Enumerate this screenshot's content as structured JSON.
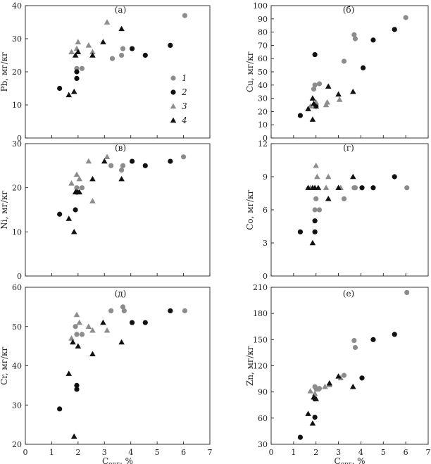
{
  "figure": {
    "legend": [
      {
        "id": "1",
        "label": "1",
        "marker": "circle",
        "color": "#8c8c8c"
      },
      {
        "id": "2",
        "label": "2",
        "marker": "circle",
        "color": "#111111"
      },
      {
        "id": "3",
        "label": "3",
        "marker": "triangle",
        "color": "#8c8c8c"
      },
      {
        "id": "4",
        "label": "4",
        "marker": "triangle",
        "color": "#111111"
      }
    ]
  },
  "chart_data": [
    {
      "type": "scatter",
      "panel": "(а)",
      "xlabel_main": "C",
      "xlabel_sub": "орг",
      "xlabel_tail": ", %",
      "ylabel": "Pb, мг/кг",
      "xlim": [
        0,
        7
      ],
      "ylim": [
        0,
        40
      ],
      "xticks": [
        0,
        1,
        2,
        3,
        4,
        5,
        6,
        7
      ],
      "yticks": [
        0,
        10,
        20,
        30,
        40
      ],
      "series": [
        {
          "legend": "1",
          "points": [
            [
              1.95,
              21
            ],
            [
              2.15,
              21
            ],
            [
              3.3,
              24
            ],
            [
              3.65,
              25
            ],
            [
              3.7,
              27
            ],
            [
              6.05,
              37
            ]
          ]
        },
        {
          "legend": "2",
          "points": [
            [
              1.3,
              15
            ],
            [
              1.95,
              18
            ],
            [
              1.95,
              20
            ],
            [
              4.05,
              27
            ],
            [
              4.55,
              25
            ],
            [
              5.5,
              28
            ]
          ]
        },
        {
          "legend": "3",
          "points": [
            [
              1.75,
              26
            ],
            [
              1.95,
              27
            ],
            [
              2.0,
              29
            ],
            [
              2.4,
              28
            ],
            [
              2.55,
              26
            ],
            [
              3.1,
              35
            ]
          ]
        },
        {
          "legend": "4",
          "points": [
            [
              1.65,
              13
            ],
            [
              1.85,
              14
            ],
            [
              1.9,
              25
            ],
            [
              2.0,
              26
            ],
            [
              2.55,
              25
            ],
            [
              2.95,
              29
            ],
            [
              3.65,
              33
            ]
          ]
        }
      ]
    },
    {
      "type": "scatter",
      "panel": "(б)",
      "xlabel_main": "C",
      "xlabel_sub": "орг",
      "xlabel_tail": ", %",
      "ylabel": "Cu, мг/кг",
      "xlim": [
        0,
        7
      ],
      "ylim": [
        0,
        100
      ],
      "xticks": [
        0,
        1,
        2,
        3,
        4,
        5,
        6,
        7
      ],
      "yticks": [
        0,
        10,
        20,
        30,
        40,
        50,
        60,
        70,
        80,
        90,
        100
      ],
      "series": [
        {
          "legend": "1",
          "points": [
            [
              1.9,
              37
            ],
            [
              1.95,
              40
            ],
            [
              2.15,
              41
            ],
            [
              3.25,
              58
            ],
            [
              3.7,
              78
            ],
            [
              3.75,
              75
            ],
            [
              6.0,
              91
            ]
          ]
        },
        {
          "legend": "2",
          "points": [
            [
              1.3,
              17
            ],
            [
              1.95,
              63
            ],
            [
              2.0,
              24
            ],
            [
              4.1,
              53
            ],
            [
              4.55,
              74
            ],
            [
              5.5,
              82
            ]
          ]
        },
        {
          "legend": "3",
          "points": [
            [
              1.75,
              24
            ],
            [
              2.0,
              27
            ],
            [
              2.45,
              25
            ],
            [
              2.5,
              27
            ],
            [
              3.05,
              29
            ]
          ]
        },
        {
          "legend": "4",
          "points": [
            [
              1.65,
              22
            ],
            [
              1.85,
              14
            ],
            [
              1.85,
              30
            ],
            [
              1.9,
              26
            ],
            [
              2.0,
              24
            ],
            [
              2.55,
              39
            ],
            [
              3.0,
              33
            ],
            [
              3.65,
              35
            ]
          ]
        }
      ]
    },
    {
      "type": "scatter",
      "panel": "(в)",
      "xlabel_main": "C",
      "xlabel_sub": "орг",
      "xlabel_tail": ", %",
      "ylabel": "Ni, мг/кг",
      "xlim": [
        0,
        7
      ],
      "ylim": [
        0,
        30
      ],
      "xticks": [
        0,
        1,
        2,
        3,
        4,
        5,
        6,
        7
      ],
      "yticks": [
        0,
        10,
        20,
        30
      ],
      "series": [
        {
          "legend": "1",
          "points": [
            [
              1.95,
              20
            ],
            [
              2.15,
              20
            ],
            [
              3.25,
              25
            ],
            [
              3.65,
              24
            ],
            [
              3.7,
              25
            ],
            [
              6.0,
              27
            ]
          ]
        },
        {
          "legend": "2",
          "points": [
            [
              1.3,
              14
            ],
            [
              1.9,
              15
            ],
            [
              1.95,
              19
            ],
            [
              4.05,
              26
            ],
            [
              4.55,
              25
            ],
            [
              5.5,
              26
            ]
          ]
        },
        {
          "legend": "3",
          "points": [
            [
              1.75,
              21
            ],
            [
              1.95,
              23
            ],
            [
              2.05,
              22
            ],
            [
              2.4,
              26
            ],
            [
              2.55,
              17
            ],
            [
              3.1,
              27
            ]
          ]
        },
        {
          "legend": "4",
          "points": [
            [
              1.65,
              13
            ],
            [
              1.85,
              10
            ],
            [
              1.9,
              19
            ],
            [
              2.05,
              19
            ],
            [
              2.55,
              22
            ],
            [
              3.0,
              26
            ],
            [
              3.65,
              22
            ]
          ]
        }
      ]
    },
    {
      "type": "scatter",
      "panel": "(г)",
      "xlabel_main": "C",
      "xlabel_sub": "орг",
      "xlabel_tail": ", %",
      "ylabel": "Co, мг/кг",
      "xlim": [
        0,
        7
      ],
      "ylim": [
        0,
        12
      ],
      "xticks": [
        0,
        1,
        2,
        3,
        4,
        5,
        6,
        7
      ],
      "yticks": [
        0,
        3,
        6,
        9,
        12
      ],
      "series": [
        {
          "legend": "1",
          "points": [
            [
              1.95,
              6
            ],
            [
              2.0,
              7
            ],
            [
              2.15,
              6
            ],
            [
              3.25,
              7
            ],
            [
              3.7,
              8
            ],
            [
              3.75,
              8
            ],
            [
              6.05,
              8
            ]
          ]
        },
        {
          "legend": "2",
          "points": [
            [
              1.3,
              4
            ],
            [
              1.95,
              4
            ],
            [
              1.95,
              5
            ],
            [
              4.05,
              8
            ],
            [
              4.55,
              8
            ],
            [
              5.5,
              9
            ]
          ]
        },
        {
          "legend": "3",
          "points": [
            [
              1.75,
              8
            ],
            [
              2.0,
              10
            ],
            [
              2.05,
              9
            ],
            [
              2.45,
              8
            ],
            [
              2.55,
              9
            ],
            [
              3.1,
              8
            ]
          ]
        },
        {
          "legend": "4",
          "points": [
            [
              1.65,
              8
            ],
            [
              1.85,
              8
            ],
            [
              1.85,
              3
            ],
            [
              1.95,
              8
            ],
            [
              2.1,
              8
            ],
            [
              2.55,
              7
            ],
            [
              3.0,
              8
            ],
            [
              3.65,
              9
            ]
          ]
        }
      ]
    },
    {
      "type": "scatter",
      "panel": "(д)",
      "xlabel_main": "C",
      "xlabel_sub": "орг",
      "xlabel_tail": ", %",
      "ylabel": "Cr, мг/кг",
      "xlim": [
        0,
        7
      ],
      "ylim": [
        20,
        60
      ],
      "xticks": [
        0,
        1,
        2,
        3,
        4,
        5,
        6,
        7
      ],
      "yticks": [
        20,
        30,
        40,
        50,
        60
      ],
      "series": [
        {
          "legend": "1",
          "points": [
            [
              1.9,
              50
            ],
            [
              1.95,
              48
            ],
            [
              2.15,
              48
            ],
            [
              3.25,
              54
            ],
            [
              3.7,
              55
            ],
            [
              3.75,
              54
            ],
            [
              6.05,
              54
            ]
          ]
        },
        {
          "legend": "2",
          "points": [
            [
              1.3,
              29
            ],
            [
              1.95,
              34
            ],
            [
              1.95,
              35
            ],
            [
              4.05,
              51
            ],
            [
              4.55,
              51
            ],
            [
              5.5,
              54
            ]
          ]
        },
        {
          "legend": "3",
          "points": [
            [
              1.75,
              47
            ],
            [
              1.95,
              53
            ],
            [
              2.05,
              51
            ],
            [
              2.4,
              50
            ],
            [
              2.55,
              49
            ],
            [
              3.1,
              49
            ]
          ]
        },
        {
          "legend": "4",
          "points": [
            [
              1.65,
              38
            ],
            [
              1.8,
              46
            ],
            [
              1.85,
              22
            ],
            [
              2.0,
              45
            ],
            [
              2.55,
              43
            ],
            [
              2.95,
              51
            ],
            [
              3.65,
              46
            ]
          ]
        }
      ]
    },
    {
      "type": "scatter",
      "panel": "(е)",
      "xlabel_main": "C",
      "xlabel_sub": "орг",
      "xlabel_tail": ", %",
      "ylabel": "Zn, мг/кг",
      "xlim": [
        0,
        7
      ],
      "ylim": [
        30,
        210
      ],
      "xticks": [
        0,
        1,
        2,
        3,
        4,
        5,
        6,
        7
      ],
      "yticks": [
        30,
        60,
        90,
        120,
        150,
        180,
        210
      ],
      "series": [
        {
          "legend": "1",
          "points": [
            [
              1.95,
              96
            ],
            [
              2.0,
              94
            ],
            [
              2.15,
              94
            ],
            [
              3.25,
              109
            ],
            [
              3.7,
              149
            ],
            [
              3.75,
              141
            ],
            [
              6.05,
              204
            ]
          ]
        },
        {
          "legend": "2",
          "points": [
            [
              1.3,
              38
            ],
            [
              1.95,
              61
            ],
            [
              1.95,
              82
            ],
            [
              4.05,
              106
            ],
            [
              4.55,
              150
            ],
            [
              5.5,
              156
            ]
          ]
        },
        {
          "legend": "3",
          "points": [
            [
              1.75,
              91
            ],
            [
              1.95,
              88
            ],
            [
              2.05,
              93
            ],
            [
              2.4,
              96
            ],
            [
              2.6,
              98
            ],
            [
              3.1,
              106
            ]
          ]
        },
        {
          "legend": "4",
          "points": [
            [
              1.65,
              65
            ],
            [
              1.85,
              54
            ],
            [
              1.9,
              84
            ],
            [
              2.0,
              82
            ],
            [
              2.6,
              100
            ],
            [
              3.0,
              108
            ],
            [
              3.65,
              96
            ]
          ]
        }
      ]
    }
  ]
}
